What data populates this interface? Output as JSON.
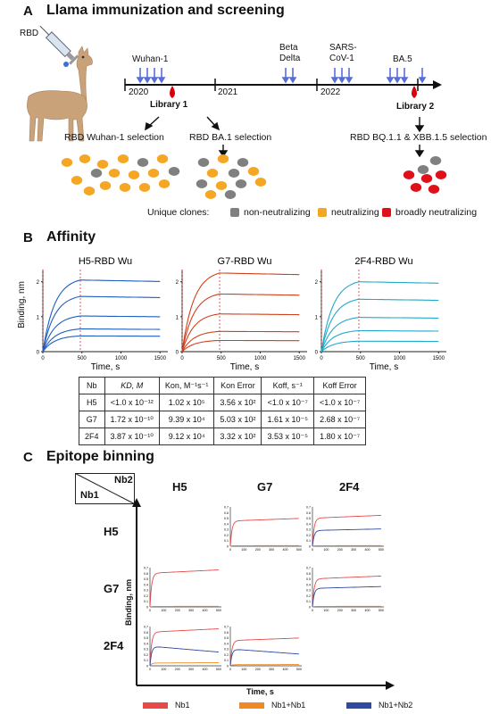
{
  "panelA": {
    "letter": "A",
    "title": "Llama immunization and screening",
    "rbd_label": "RBD",
    "timeline": {
      "years": [
        "2020",
        "2021",
        "2022"
      ],
      "immunizations": [
        "Wuhan-1",
        "Beta",
        "Delta",
        "SARS-",
        "CoV-1",
        "BA.5"
      ],
      "libraries": [
        "Library 1",
        "Library 2"
      ]
    },
    "selections": [
      "RBD Wuhan-1 selection",
      "RBD BA.1 selection",
      "RBD BQ.1.1 & XBB.1.5 selection"
    ],
    "unique_clones_label": "Unique clones:",
    "clone_types": [
      {
        "label": "non-neutralizing",
        "color": "#808080"
      },
      {
        "label": "neutralizing",
        "color": "#f5a623"
      },
      {
        "label": "broadly neutralizing",
        "color": "#e0101a"
      }
    ]
  },
  "panelB": {
    "letter": "B",
    "title": "Affinity",
    "plots": [
      {
        "title": "H5-RBD Wu",
        "color": "#1f5fbf",
        "ymax": 2,
        "yticks": [
          "0",
          "1",
          "2"
        ],
        "plateaus": [
          2.05,
          1.58,
          1.02,
          0.65,
          0.45
        ]
      },
      {
        "title": "G7-RBD Wu",
        "color": "#d0401c",
        "ymax": 2.3,
        "yticks": [
          "0",
          "1",
          "2"
        ],
        "plateaus": [
          2.25,
          1.65,
          1.08,
          0.58,
          0.32
        ]
      },
      {
        "title": "2F4-RBD Wu",
        "color": "#22a9c9",
        "ymax": 2.1,
        "yticks": [
          "0",
          "1",
          "2"
        ],
        "plateaus": [
          2.0,
          1.5,
          0.98,
          0.6,
          0.3
        ]
      }
    ],
    "xticks": [
      "0",
      "500",
      "1000",
      "1500"
    ],
    "ylabel": "Binding, nm",
    "xlabel": "Time, s",
    "table": {
      "headers": [
        "Nb",
        "KD, M",
        "Kon, M⁻¹s⁻¹",
        "Kon Error",
        "Koff, s⁻¹",
        "Koff Error"
      ],
      "rows": [
        [
          "H5",
          "<1.0 x 10⁻¹²",
          "1.02 x 10⁵",
          "3.56 x 10²",
          "<1.0 x 10⁻⁷",
          "<1.0 x 10⁻⁷"
        ],
        [
          "G7",
          "1.72 x 10⁻¹⁰",
          "9.39 x 10⁴",
          "5.03 x 10²",
          "1.61 x 10⁻⁵",
          "2.68 x 10⁻⁷"
        ],
        [
          "2F4",
          "3.87 x 10⁻¹⁰",
          "9.12 x 10⁴",
          "3.32 x 10²",
          "3.53 x 10⁻⁵",
          "1.80 x 10⁻⁷"
        ]
      ]
    }
  },
  "panelC": {
    "letter": "C",
    "title": "Epitope binning",
    "corner": {
      "nb1": "Nb1",
      "nb2": "Nb2"
    },
    "columns": [
      "H5",
      "G7",
      "2F4"
    ],
    "rows": [
      "H5",
      "G7",
      "2F4"
    ],
    "ylabel": "Binding, nm",
    "xlabel": "Time, s",
    "mini_xticks": [
      "0",
      "100",
      "200",
      "300",
      "400",
      "500"
    ],
    "mini_yticks": [
      "0",
      "0.1",
      "0.2",
      "0.3",
      "0.4",
      "0.5",
      "0.6",
      "0.7"
    ],
    "legend": [
      {
        "label": "Nb1",
        "color": "#e84a4a"
      },
      {
        "label": "Nb1+Nb1",
        "color": "#f08a24"
      },
      {
        "label": "Nb1+Nb2",
        "color": "#2f4aa0"
      }
    ]
  }
}
